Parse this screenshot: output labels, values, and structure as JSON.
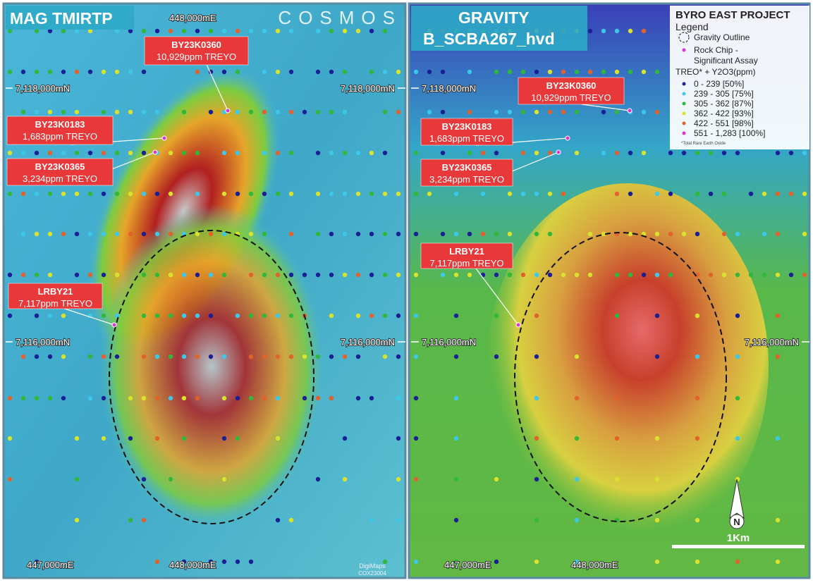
{
  "panels": [
    {
      "title": "MAG TMIRTP",
      "brand": "COSMOS",
      "coords": {
        "top_e": "448,000mE",
        "n_upper_left": "7,118,000mN",
        "n_upper_right": "7,118,000mN",
        "n_lower_left": "7,116,000mN",
        "n_lower_right": "7,116,000mN",
        "bottom_e1": "447,000mE",
        "bottom_e2": "448,000mE"
      },
      "credit": [
        "DigiMaps",
        "COX23004"
      ],
      "callouts": [
        {
          "id": "BY23K0360",
          "assay": "10,929ppm TREYO"
        },
        {
          "id": "BY23K0183",
          "assay": "1,683ppm TREYO"
        },
        {
          "id": "BY23K0365",
          "assay": "3,234ppm TREYO"
        },
        {
          "id": "LRBY21",
          "assay": "7,117ppm TREYO"
        }
      ]
    },
    {
      "title": "GRAVITY",
      "subtitle": "B_SCBA267_hvd",
      "coords": {
        "n_upper_left": "7,118,000mN",
        "n_lower_left": "7,116,000mN",
        "n_lower_right": "7,116,000mN",
        "bottom_e1": "447,000mE",
        "bottom_e2": "448,000mE"
      },
      "callouts": [
        {
          "id": "BY23K0360",
          "assay": "10,929ppm TREYO"
        },
        {
          "id": "BY23K0183",
          "assay": "1,683ppm TREYO"
        },
        {
          "id": "BY23K0365",
          "assay": "3,234ppm TREYO"
        },
        {
          "id": "LRBY21",
          "assay": "7,117ppm TREYO"
        }
      ]
    }
  ],
  "legend": {
    "project": "BYRO EAST PROJECT",
    "title": "Legend",
    "outline": "Gravity Outline",
    "rockchip": "Rock Chip -",
    "rockchip2": "Significant Assay",
    "scale_title": "TREO* + Y2O3(ppm)",
    "classes": [
      {
        "label": "0 - 239 [50%]",
        "color": "#1b1f96"
      },
      {
        "label": "239 - 305 [75%]",
        "color": "#3cc8ea"
      },
      {
        "label": "305 - 362 [87%]",
        "color": "#2fb83a"
      },
      {
        "label": "362 - 422 [93%]",
        "color": "#d9e22c"
      },
      {
        "label": "422 - 551 [98%]",
        "color": "#e2622b"
      },
      {
        "label": "551 - 1,283 [100%]",
        "color": "#d935d6"
      }
    ],
    "footnote": "*Total Rare Earth Oxide"
  },
  "north": "N",
  "scale_bar": "1Km"
}
